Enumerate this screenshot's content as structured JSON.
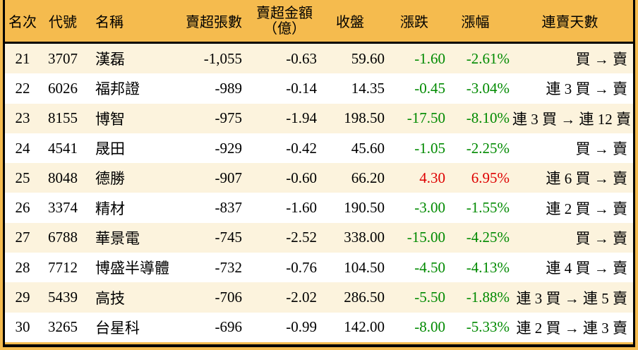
{
  "colors": {
    "header_bg": "#F5BB4E",
    "frame_bg": "#F5BB4E",
    "row_alt_bg": "#FCF3DD",
    "row_bg": "#FFFFFF",
    "up_red": "#DE0000",
    "down_green": "#008A00",
    "border": "#000000"
  },
  "chart_data": {
    "type": "table",
    "title": "",
    "columns": [
      {
        "key": "rank",
        "label": "名次"
      },
      {
        "key": "code",
        "label": "代號"
      },
      {
        "key": "name",
        "label": "名稱"
      },
      {
        "key": "sell_volume",
        "label": "賣超張數"
      },
      {
        "key": "sell_amount",
        "label": "賣超金額",
        "label2": "（億）"
      },
      {
        "key": "close",
        "label": "收盤"
      },
      {
        "key": "change",
        "label": "漲跌"
      },
      {
        "key": "change_pct",
        "label": "漲幅"
      },
      {
        "key": "streak",
        "label": "連賣天數"
      }
    ],
    "rows": [
      {
        "rank": "21",
        "code": "3707",
        "name": "漢磊",
        "sell_volume": "-1,055",
        "sell_amount": "-0.63",
        "close": "59.60",
        "change": "-1.60",
        "change_pct": "-2.61%",
        "streak": "買 → 賣",
        "direction": "down"
      },
      {
        "rank": "22",
        "code": "6026",
        "name": "福邦證",
        "sell_volume": "-989",
        "sell_amount": "-0.14",
        "close": "14.35",
        "change": "-0.45",
        "change_pct": "-3.04%",
        "streak": "連 3 買 → 賣",
        "direction": "down"
      },
      {
        "rank": "23",
        "code": "8155",
        "name": "博智",
        "sell_volume": "-975",
        "sell_amount": "-1.94",
        "close": "198.50",
        "change": "-17.50",
        "change_pct": "-8.10%",
        "streak": "連 3 買 → 連 12 賣",
        "direction": "down"
      },
      {
        "rank": "24",
        "code": "4541",
        "name": "晟田",
        "sell_volume": "-929",
        "sell_amount": "-0.42",
        "close": "45.60",
        "change": "-1.05",
        "change_pct": "-2.25%",
        "streak": "買 → 賣",
        "direction": "down"
      },
      {
        "rank": "25",
        "code": "8048",
        "name": "德勝",
        "sell_volume": "-907",
        "sell_amount": "-0.60",
        "close": "66.20",
        "change": "4.30",
        "change_pct": "6.95%",
        "streak": "連 6 買 → 賣",
        "direction": "up"
      },
      {
        "rank": "26",
        "code": "3374",
        "name": "精材",
        "sell_volume": "-837",
        "sell_amount": "-1.60",
        "close": "190.50",
        "change": "-3.00",
        "change_pct": "-1.55%",
        "streak": "連 2 買 → 賣",
        "direction": "down"
      },
      {
        "rank": "27",
        "code": "6788",
        "name": "華景電",
        "sell_volume": "-745",
        "sell_amount": "-2.52",
        "close": "338.00",
        "change": "-15.00",
        "change_pct": "-4.25%",
        "streak": "買 → 賣",
        "direction": "down"
      },
      {
        "rank": "28",
        "code": "7712",
        "name": "博盛半導體",
        "sell_volume": "-732",
        "sell_amount": "-0.76",
        "close": "104.50",
        "change": "-4.50",
        "change_pct": "-4.13%",
        "streak": "連 4 買 → 賣",
        "direction": "down"
      },
      {
        "rank": "29",
        "code": "5439",
        "name": "高技",
        "sell_volume": "-706",
        "sell_amount": "-2.02",
        "close": "286.50",
        "change": "-5.50",
        "change_pct": "-1.88%",
        "streak": "連 3 買 → 連 5 賣",
        "direction": "down"
      },
      {
        "rank": "30",
        "code": "3265",
        "name": "台星科",
        "sell_volume": "-696",
        "sell_amount": "-0.99",
        "close": "142.00",
        "change": "-8.00",
        "change_pct": "-5.33%",
        "streak": "連 2 買 → 連 3 賣",
        "direction": "down"
      }
    ]
  }
}
